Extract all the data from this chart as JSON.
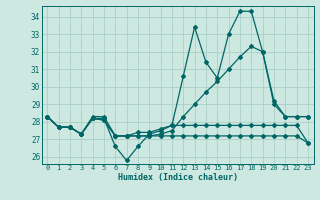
{
  "xlabel": "Humidex (Indice chaleur)",
  "bg_color": "#cce8e0",
  "line_color": "#006666",
  "grid_color": "#aad0c8",
  "xlim": [
    -0.5,
    23.5
  ],
  "ylim": [
    25.6,
    34.6
  ],
  "yticks": [
    26,
    27,
    28,
    29,
    30,
    31,
    32,
    33,
    34
  ],
  "xticks": [
    0,
    1,
    2,
    3,
    4,
    5,
    6,
    7,
    8,
    9,
    10,
    11,
    12,
    13,
    14,
    15,
    16,
    17,
    18,
    19,
    20,
    21,
    22,
    23
  ],
  "series": [
    [
      28.3,
      27.7,
      27.7,
      27.3,
      28.2,
      28.2,
      26.6,
      25.8,
      26.6,
      27.3,
      27.5,
      27.8,
      30.6,
      33.4,
      31.4,
      30.5,
      33.0,
      34.3,
      34.3,
      32.0,
      29.0,
      28.3,
      28.3,
      28.3
    ],
    [
      28.3,
      27.7,
      27.7,
      27.3,
      28.2,
      28.1,
      27.2,
      27.2,
      27.2,
      27.2,
      27.3,
      27.5,
      28.3,
      29.0,
      29.7,
      30.3,
      31.0,
      31.7,
      32.3,
      32.0,
      29.2,
      28.3,
      28.3,
      28.3
    ],
    [
      28.3,
      27.7,
      27.7,
      27.3,
      28.2,
      28.1,
      27.2,
      27.2,
      27.2,
      27.2,
      27.2,
      27.2,
      27.2,
      27.2,
      27.2,
      27.2,
      27.2,
      27.2,
      27.2,
      27.2,
      27.2,
      27.2,
      27.2,
      26.8
    ],
    [
      28.3,
      27.7,
      27.7,
      27.3,
      28.3,
      28.3,
      27.2,
      27.2,
      27.4,
      27.4,
      27.6,
      27.8,
      27.8,
      27.8,
      27.8,
      27.8,
      27.8,
      27.8,
      27.8,
      27.8,
      27.8,
      27.8,
      27.8,
      26.8
    ]
  ]
}
